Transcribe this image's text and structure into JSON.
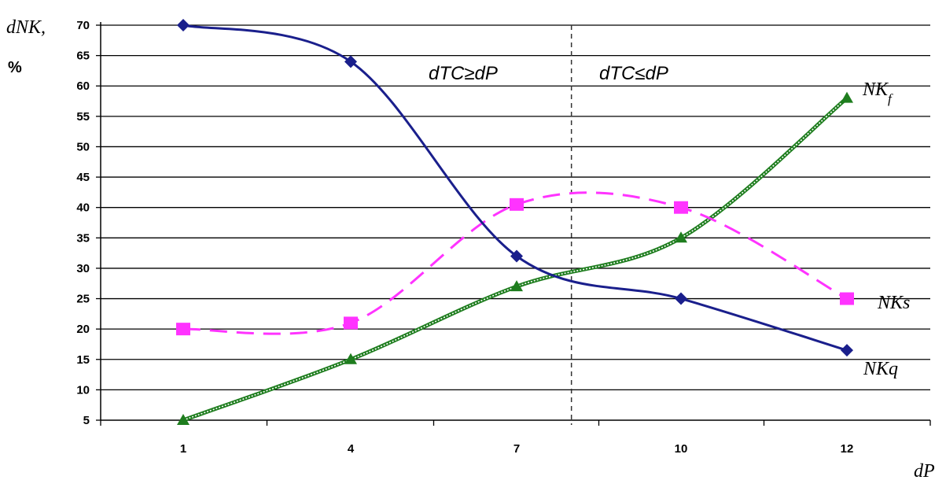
{
  "chart_data": {
    "type": "line",
    "title": "",
    "ylabel": "dNK,",
    "ylabel_unit": "%",
    "xlabel": "dP",
    "categories": [
      "1",
      "4",
      "7",
      "10",
      "12"
    ],
    "x": [
      1,
      4,
      7,
      10,
      12
    ],
    "ylim": [
      5,
      70
    ],
    "y_ticks": [
      5,
      10,
      15,
      20,
      25,
      30,
      35,
      40,
      45,
      50,
      55,
      60,
      65,
      70
    ],
    "grid": true,
    "divider_x": 8,
    "region_labels": [
      "dTC≥dP",
      "dTC≤dP"
    ],
    "series": [
      {
        "name": "NKq",
        "label_main": "NKq",
        "label_sub": "",
        "color": "#1a1f8c",
        "marker": "diamond",
        "style": "solid",
        "values": [
          70,
          64,
          32,
          25,
          16.5
        ]
      },
      {
        "name": "NKs",
        "label_main": "NKs",
        "label_sub": "",
        "color": "#ff33ff",
        "marker": "square",
        "style": "dashed",
        "values": [
          20,
          21,
          40.5,
          40,
          25
        ]
      },
      {
        "name": "NK_f",
        "label_main": "NK",
        "label_sub": "f",
        "color": "#1e7d1e",
        "marker": "triangle",
        "style": "double",
        "values": [
          5,
          15,
          27,
          35,
          58
        ]
      }
    ]
  }
}
